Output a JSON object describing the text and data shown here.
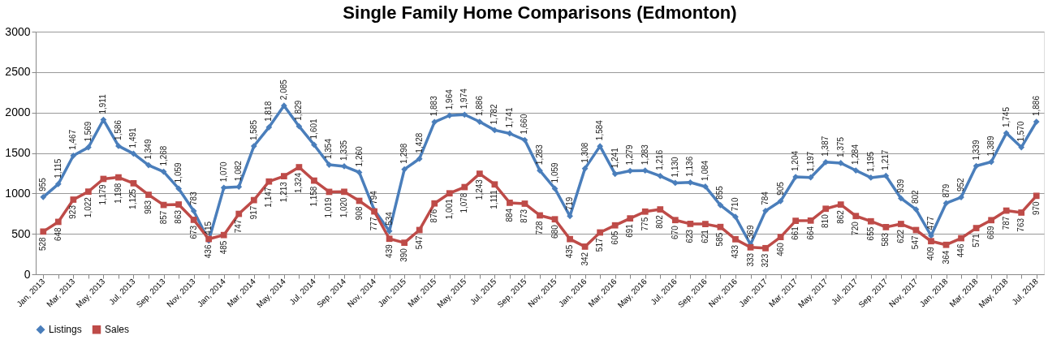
{
  "chart_data": {
    "type": "line",
    "title": "Single Family Home Comparisons (Edmonton)",
    "categories": [
      "Jan, 2013",
      null,
      "Mar, 2013",
      null,
      "May, 2013",
      null,
      "Jul, 2013",
      null,
      "Sep, 2013",
      null,
      "Nov, 2013",
      null,
      "Jan, 2014",
      null,
      "Mar, 2014",
      null,
      "May, 2014",
      null,
      "Jul, 2014",
      null,
      "Sep, 2014",
      null,
      "Nov, 2014",
      null,
      "Jan, 2015",
      null,
      "Mar, 2015",
      null,
      "May, 2015",
      null,
      "Jul, 2015",
      null,
      "Sep, 2015",
      null,
      "Nov, 2015",
      null,
      "Jan, 2016",
      null,
      "Mar, 2016",
      null,
      "May, 2016",
      null,
      "Jul, 2016",
      null,
      "Sep, 2016",
      null,
      "Nov, 2016",
      null,
      "Jan, 2017",
      null,
      "Mar, 2017",
      null,
      "May, 2017",
      null,
      "Jul, 2017",
      null,
      "Sep, 2017",
      null,
      "Nov, 2017",
      null,
      "Jan, 2018",
      null,
      "Mar, 2018",
      null,
      "May, 2018",
      null,
      "Jul, 2018"
    ],
    "series": [
      {
        "name": "Listings",
        "color": "#4a7ebb",
        "marker": "diamond",
        "value_labels": [
          "955",
          "1,115",
          "1,467",
          "1,569",
          "1,911",
          "1,586",
          "1,491",
          "1,349",
          "1,268",
          "1,059",
          "783",
          "415",
          "1,070",
          "1,082",
          "1,585",
          "1,818",
          "2,085",
          "1,829",
          "1,601",
          "1,354",
          "1,335",
          "1,260",
          "794",
          "534",
          "1,298",
          "1,428",
          "1,883",
          "1,964",
          "1,974",
          "1,886",
          "1,782",
          "1,741",
          "1,660",
          "1,283",
          "1,059",
          "719",
          "1,308",
          "1,584",
          "1,241",
          "1,279",
          "1,283",
          "1,216",
          "1,130",
          "1,136",
          "1,084",
          "855",
          "710",
          "369",
          "784",
          "905",
          "1,204",
          "1,197",
          "1,387",
          "1,375",
          "1,284",
          "1,195",
          "1,217",
          "939",
          "802",
          "477",
          "879",
          "952",
          "1,339",
          "1,389",
          "1,745",
          "1,570",
          "1,886"
        ],
        "values": [
          955,
          1115,
          1467,
          1569,
          1911,
          1586,
          1491,
          1349,
          1268,
          1059,
          783,
          415,
          1070,
          1082,
          1585,
          1818,
          2085,
          1829,
          1601,
          1354,
          1335,
          1260,
          794,
          534,
          1298,
          1428,
          1883,
          1964,
          1974,
          1886,
          1782,
          1741,
          1660,
          1283,
          1059,
          719,
          1308,
          1584,
          1241,
          1279,
          1283,
          1216,
          1130,
          1136,
          1084,
          855,
          710,
          369,
          784,
          905,
          1204,
          1197,
          1387,
          1375,
          1284,
          1195,
          1217,
          939,
          802,
          477,
          879,
          952,
          1339,
          1389,
          1745,
          1570,
          1886
        ]
      },
      {
        "name": "Sales",
        "color": "#be4b48",
        "marker": "square",
        "value_labels": [
          "528",
          "648",
          "923",
          "1,022",
          "1,179",
          "1,198",
          "1,125",
          "983",
          "857",
          "863",
          "673",
          "436",
          "485",
          "747",
          "917",
          "1,147",
          "1,213",
          "1,324",
          "1,158",
          "1,019",
          "1,020",
          "908",
          "777",
          "439",
          "390",
          "547",
          "876",
          "1,001",
          "1,078",
          "1,243",
          "1,111",
          "884",
          "873",
          "728",
          "680",
          "435",
          "342",
          "517",
          "605",
          "691",
          "775",
          "802",
          "670",
          "623",
          "621",
          "585",
          "433",
          "333",
          "323",
          "460",
          "661",
          "664",
          "810",
          "862",
          "720",
          "655",
          "583",
          "622",
          "547",
          "409",
          "364",
          "446",
          "571",
          "669",
          "787",
          "763",
          "970"
        ],
        "values": [
          528,
          648,
          923,
          1022,
          1179,
          1198,
          1125,
          983,
          857,
          863,
          673,
          436,
          485,
          747,
          917,
          1147,
          1213,
          1324,
          1158,
          1019,
          1020,
          908,
          777,
          439,
          390,
          547,
          876,
          1001,
          1078,
          1243,
          1111,
          884,
          873,
          728,
          680,
          435,
          342,
          517,
          605,
          691,
          775,
          802,
          670,
          623,
          621,
          585,
          433,
          333,
          323,
          460,
          661,
          664,
          810,
          862,
          720,
          655,
          583,
          622,
          547,
          409,
          364,
          446,
          571,
          669,
          787,
          763,
          970
        ]
      }
    ],
    "ylim": [
      0,
      3000
    ],
    "yticks": [
      0,
      500,
      1000,
      1500,
      2000,
      2500,
      3000
    ],
    "grid": "y",
    "legend": "bottom"
  }
}
